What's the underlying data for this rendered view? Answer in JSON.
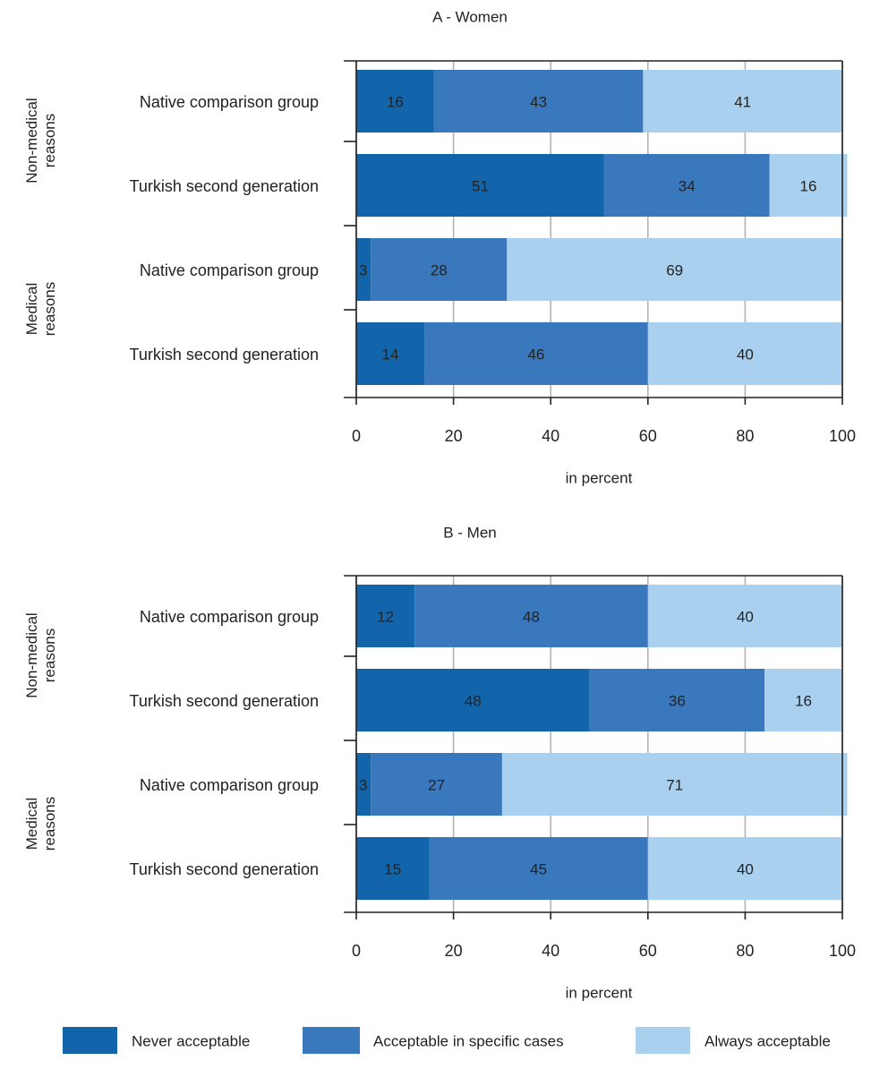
{
  "colors": {
    "never": "#1265aa",
    "specific": "#3a78bd",
    "always": "#a9d1ef",
    "grid": "#b3b3b3",
    "axis": "#222222"
  },
  "legend": [
    {
      "key": "never",
      "label": "Never acceptable"
    },
    {
      "key": "specific",
      "label": "Acceptable in specific cases"
    },
    {
      "key": "always",
      "label": "Always acceptable"
    }
  ],
  "chart_data": [
    {
      "type": "bar",
      "orientation": "horizontal",
      "stacked": true,
      "title": "A - Women",
      "xlabel": "in percent",
      "xlim": [
        0,
        100
      ],
      "xticks": [
        0,
        20,
        40,
        60,
        80,
        100
      ],
      "grid": true,
      "groups": [
        "Non-medical reasons",
        "Medical reasons"
      ],
      "categories": [
        "Native comparison group",
        "Turkish second generation",
        "Native comparison group",
        "Turkish second generation"
      ],
      "series": [
        {
          "name": "Never acceptable",
          "values": [
            16,
            51,
            3,
            14
          ]
        },
        {
          "name": "Acceptable in specific cases",
          "values": [
            43,
            34,
            28,
            46
          ]
        },
        {
          "name": "Always acceptable",
          "values": [
            41,
            16,
            69,
            40
          ]
        }
      ]
    },
    {
      "type": "bar",
      "orientation": "horizontal",
      "stacked": true,
      "title": "B - Men",
      "xlabel": "in percent",
      "xlim": [
        0,
        100
      ],
      "xticks": [
        0,
        20,
        40,
        60,
        80,
        100
      ],
      "grid": true,
      "groups": [
        "Non-medical reasons",
        "Medical reasons"
      ],
      "categories": [
        "Native comparison group",
        "Turkish second generation",
        "Native comparison group",
        "Turkish second generation"
      ],
      "series": [
        {
          "name": "Never acceptable",
          "values": [
            12,
            48,
            3,
            15
          ]
        },
        {
          "name": "Acceptable in specific cases",
          "values": [
            48,
            36,
            27,
            45
          ]
        },
        {
          "name": "Always acceptable",
          "values": [
            40,
            16,
            71,
            40
          ]
        }
      ]
    }
  ]
}
